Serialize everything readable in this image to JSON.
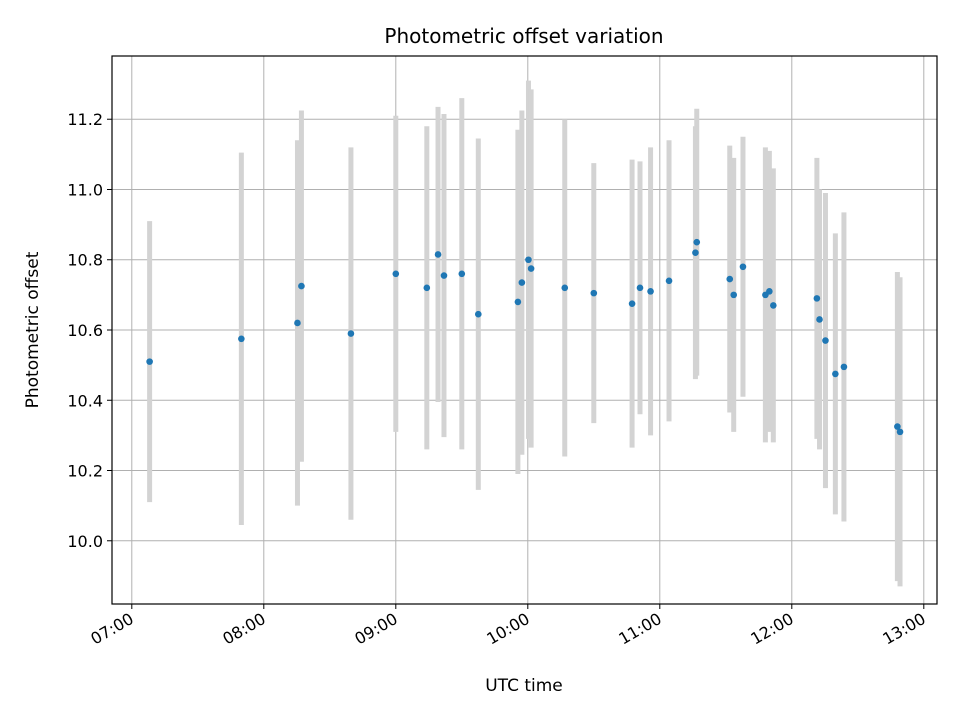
{
  "chart_data": {
    "type": "scatter",
    "title": "Photometric offset variation",
    "xlabel": "UTC time",
    "ylabel": "Photometric offset",
    "grid": true,
    "xlim": [
      6.85,
      13.1
    ],
    "ylim": [
      9.82,
      11.38
    ],
    "x_ticks": [
      {
        "value": 7,
        "label": "07:00"
      },
      {
        "value": 8,
        "label": "08:00"
      },
      {
        "value": 9,
        "label": "09:00"
      },
      {
        "value": 10,
        "label": "10:00"
      },
      {
        "value": 11,
        "label": "11:00"
      },
      {
        "value": 12,
        "label": "12:00"
      },
      {
        "value": 13,
        "label": "13:00"
      }
    ],
    "y_ticks": [
      {
        "value": 10.0,
        "label": "10.0"
      },
      {
        "value": 10.2,
        "label": "10.2"
      },
      {
        "value": 10.4,
        "label": "10.4"
      },
      {
        "value": 10.6,
        "label": "10.6"
      },
      {
        "value": 10.8,
        "label": "10.8"
      },
      {
        "value": 11.0,
        "label": "11.0"
      },
      {
        "value": 11.2,
        "label": "11.2"
      }
    ],
    "series": [
      {
        "name": "offset",
        "marker_color": "#1f77b4",
        "errorbar_color": "#d3d3d3",
        "points": [
          {
            "t": 7.135,
            "y": 10.51,
            "err": 0.4
          },
          {
            "t": 7.83,
            "y": 10.575,
            "err": 0.53
          },
          {
            "t": 8.255,
            "y": 10.62,
            "err": 0.52
          },
          {
            "t": 8.285,
            "y": 10.725,
            "err": 0.5
          },
          {
            "t": 8.66,
            "y": 10.59,
            "err": 0.53
          },
          {
            "t": 9.0,
            "y": 10.76,
            "err": 0.45
          },
          {
            "t": 9.235,
            "y": 10.72,
            "err": 0.46
          },
          {
            "t": 9.32,
            "y": 10.815,
            "err": 0.42
          },
          {
            "t": 9.365,
            "y": 10.755,
            "err": 0.46
          },
          {
            "t": 9.5,
            "y": 10.76,
            "err": 0.5
          },
          {
            "t": 9.625,
            "y": 10.645,
            "err": 0.5
          },
          {
            "t": 9.925,
            "y": 10.68,
            "err": 0.49
          },
          {
            "t": 9.955,
            "y": 10.735,
            "err": 0.49
          },
          {
            "t": 10.005,
            "y": 10.8,
            "err": 0.51
          },
          {
            "t": 10.025,
            "y": 10.775,
            "err": 0.51
          },
          {
            "t": 10.28,
            "y": 10.72,
            "err": 0.48
          },
          {
            "t": 10.5,
            "y": 10.705,
            "err": 0.37
          },
          {
            "t": 10.79,
            "y": 10.675,
            "err": 0.41
          },
          {
            "t": 10.85,
            "y": 10.72,
            "err": 0.36
          },
          {
            "t": 10.93,
            "y": 10.71,
            "err": 0.41
          },
          {
            "t": 11.07,
            "y": 10.74,
            "err": 0.4
          },
          {
            "t": 11.27,
            "y": 10.82,
            "err": 0.36
          },
          {
            "t": 11.28,
            "y": 10.85,
            "err": 0.38
          },
          {
            "t": 11.53,
            "y": 10.745,
            "err": 0.38
          },
          {
            "t": 11.56,
            "y": 10.7,
            "err": 0.39
          },
          {
            "t": 11.63,
            "y": 10.78,
            "err": 0.37
          },
          {
            "t": 11.8,
            "y": 10.7,
            "err": 0.42
          },
          {
            "t": 11.83,
            "y": 10.71,
            "err": 0.4
          },
          {
            "t": 11.86,
            "y": 10.67,
            "err": 0.39
          },
          {
            "t": 12.19,
            "y": 10.69,
            "err": 0.4
          },
          {
            "t": 12.21,
            "y": 10.63,
            "err": 0.37
          },
          {
            "t": 12.255,
            "y": 10.57,
            "err": 0.42
          },
          {
            "t": 12.33,
            "y": 10.475,
            "err": 0.4
          },
          {
            "t": 12.395,
            "y": 10.495,
            "err": 0.44
          },
          {
            "t": 12.8,
            "y": 10.325,
            "err": 0.44
          },
          {
            "t": 12.82,
            "y": 10.31,
            "err": 0.44
          }
        ]
      }
    ]
  }
}
